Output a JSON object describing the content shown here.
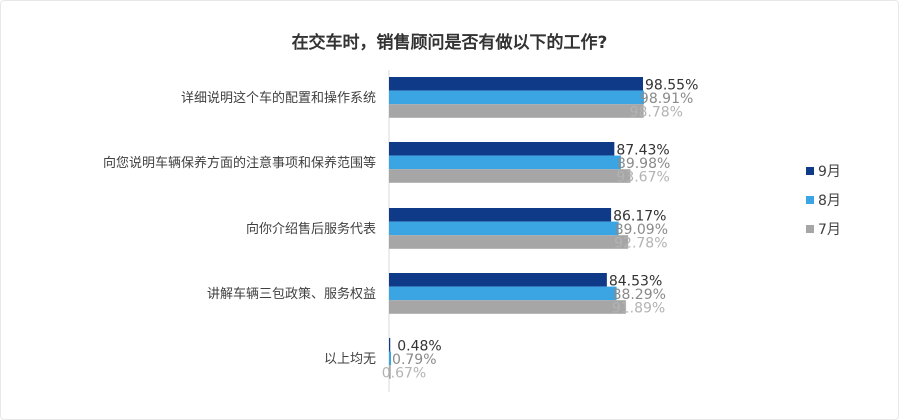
{
  "chart_data": {
    "type": "bar",
    "orientation": "horizontal",
    "title": "在交车时，销售顾问是否有做以下的工作?",
    "categories": [
      "详细说明这个车的配置和操作系统",
      "向您说明车辆保养方面的注意事项和保养范围等",
      "向你介绍售后服务代表",
      "讲解车辆三包政策、服务权益",
      "以上均无"
    ],
    "series": [
      {
        "name": "9月",
        "color": "#0e3a87",
        "label_color": "#333333",
        "values": [
          98.55,
          87.43,
          86.17,
          84.53,
          0.48
        ]
      },
      {
        "name": "8月",
        "color": "#3ba4e3",
        "label_color": "#8a8a8a",
        "values": [
          98.91,
          89.98,
          89.09,
          88.29,
          0.79
        ]
      },
      {
        "name": "7月",
        "color": "#a6a6a6",
        "label_color": "#b3b3b3",
        "values": [
          98.78,
          93.67,
          92.78,
          91.89,
          0.67
        ]
      }
    ],
    "value_suffix": "%",
    "xlim": [
      0,
      100
    ],
    "grid": false,
    "legend": "right"
  }
}
